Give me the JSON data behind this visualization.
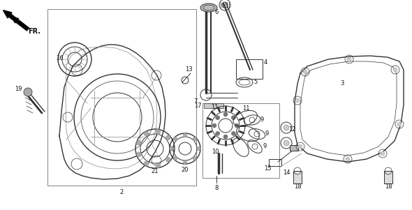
{
  "bg_color": "#ffffff",
  "fig_width": 5.9,
  "fig_height": 3.01,
  "dpi": 100,
  "lc": "#333333",
  "lc_light": "#888888",
  "lw_thick": 1.0,
  "lw_main": 0.7,
  "lw_thin": 0.5,
  "fs_label": 6.0
}
